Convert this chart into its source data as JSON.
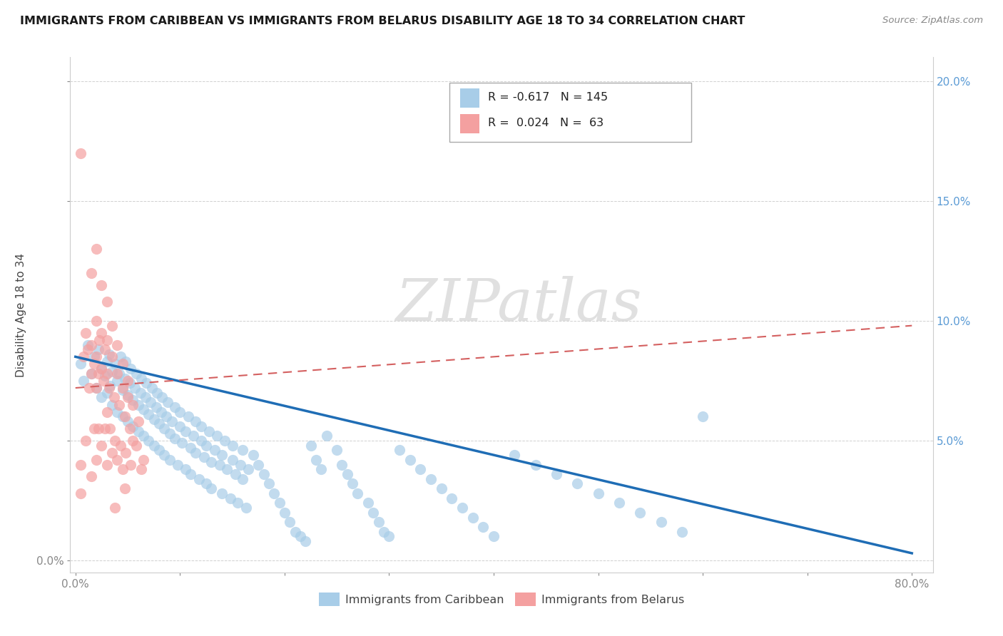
{
  "title": "IMMIGRANTS FROM CARIBBEAN VS IMMIGRANTS FROM BELARUS DISABILITY AGE 18 TO 34 CORRELATION CHART",
  "source_text": "Source: ZipAtlas.com",
  "ylabel": "Disability Age 18 to 34",
  "xlim": [
    -0.005,
    0.82
  ],
  "ylim": [
    -0.005,
    0.21
  ],
  "xticks": [
    0.0,
    0.1,
    0.2,
    0.3,
    0.4,
    0.5,
    0.6,
    0.7,
    0.8
  ],
  "xticklabels": [
    "0.0%",
    "",
    "",
    "",
    "",
    "",
    "",
    "",
    "80.0%"
  ],
  "yticks_left": [
    0.0,
    0.05,
    0.1,
    0.15,
    0.2
  ],
  "yticklabels_left": [
    "0.0%",
    "",
    "",
    "",
    ""
  ],
  "yticks_right": [
    0.05,
    0.1,
    0.15,
    0.2
  ],
  "yticklabels_right": [
    "5.0%",
    "10.0%",
    "15.0%",
    "20.0%"
  ],
  "caribbean_color": "#a8cde8",
  "belarus_color": "#f4a0a0",
  "trend_caribbean_color": "#1f6db5",
  "trend_belarus_color": "#d46060",
  "legend_R_caribbean": "-0.617",
  "legend_N_caribbean": "145",
  "legend_R_belarus": "0.024",
  "legend_N_belarus": "63",
  "legend_label_caribbean": "Immigrants from Caribbean",
  "legend_label_belarus": "Immigrants from Belarus",
  "watermark": "ZIPatlas",
  "background_color": "#ffffff",
  "right_axis_color": "#5b9bd5",
  "grid_color": "#d0d0d0",
  "tick_color": "#888888",
  "title_color": "#1a1a1a",
  "source_color": "#888888",
  "caribbean_x": [
    0.005,
    0.008,
    0.012,
    0.015,
    0.018,
    0.02,
    0.022,
    0.025,
    0.025,
    0.028,
    0.03,
    0.03,
    0.032,
    0.033,
    0.035,
    0.035,
    0.038,
    0.04,
    0.04,
    0.042,
    0.043,
    0.045,
    0.045,
    0.047,
    0.048,
    0.05,
    0.05,
    0.052,
    0.053,
    0.055,
    0.055,
    0.057,
    0.058,
    0.06,
    0.06,
    0.062,
    0.063,
    0.065,
    0.065,
    0.067,
    0.068,
    0.07,
    0.07,
    0.072,
    0.073,
    0.075,
    0.075,
    0.077,
    0.078,
    0.08,
    0.08,
    0.082,
    0.083,
    0.085,
    0.085,
    0.087,
    0.088,
    0.09,
    0.09,
    0.092,
    0.095,
    0.095,
    0.098,
    0.1,
    0.1,
    0.102,
    0.105,
    0.105,
    0.108,
    0.11,
    0.11,
    0.113,
    0.115,
    0.115,
    0.118,
    0.12,
    0.12,
    0.123,
    0.125,
    0.125,
    0.128,
    0.13,
    0.13,
    0.133,
    0.135,
    0.138,
    0.14,
    0.14,
    0.143,
    0.145,
    0.148,
    0.15,
    0.15,
    0.153,
    0.155,
    0.158,
    0.16,
    0.16,
    0.163,
    0.165,
    0.17,
    0.175,
    0.18,
    0.185,
    0.19,
    0.195,
    0.2,
    0.205,
    0.21,
    0.215,
    0.22,
    0.225,
    0.23,
    0.235,
    0.24,
    0.25,
    0.255,
    0.26,
    0.265,
    0.27,
    0.28,
    0.285,
    0.29,
    0.295,
    0.3,
    0.31,
    0.32,
    0.33,
    0.34,
    0.35,
    0.36,
    0.37,
    0.38,
    0.39,
    0.4,
    0.42,
    0.44,
    0.46,
    0.48,
    0.5,
    0.52,
    0.54,
    0.56,
    0.58,
    0.6
  ],
  "caribbean_y": [
    0.082,
    0.075,
    0.09,
    0.078,
    0.085,
    0.072,
    0.088,
    0.08,
    0.068,
    0.077,
    0.083,
    0.07,
    0.086,
    0.073,
    0.079,
    0.065,
    0.082,
    0.075,
    0.062,
    0.078,
    0.085,
    0.071,
    0.06,
    0.076,
    0.083,
    0.069,
    0.058,
    0.074,
    0.08,
    0.067,
    0.056,
    0.072,
    0.078,
    0.065,
    0.054,
    0.07,
    0.076,
    0.063,
    0.052,
    0.068,
    0.074,
    0.061,
    0.05,
    0.066,
    0.072,
    0.059,
    0.048,
    0.064,
    0.07,
    0.057,
    0.046,
    0.062,
    0.068,
    0.055,
    0.044,
    0.06,
    0.066,
    0.053,
    0.042,
    0.058,
    0.064,
    0.051,
    0.04,
    0.056,
    0.062,
    0.049,
    0.038,
    0.054,
    0.06,
    0.047,
    0.036,
    0.052,
    0.058,
    0.045,
    0.034,
    0.05,
    0.056,
    0.043,
    0.032,
    0.048,
    0.054,
    0.041,
    0.03,
    0.046,
    0.052,
    0.04,
    0.028,
    0.044,
    0.05,
    0.038,
    0.026,
    0.042,
    0.048,
    0.036,
    0.024,
    0.04,
    0.046,
    0.034,
    0.022,
    0.038,
    0.044,
    0.04,
    0.036,
    0.032,
    0.028,
    0.024,
    0.02,
    0.016,
    0.012,
    0.01,
    0.008,
    0.048,
    0.042,
    0.038,
    0.052,
    0.046,
    0.04,
    0.036,
    0.032,
    0.028,
    0.024,
    0.02,
    0.016,
    0.012,
    0.01,
    0.046,
    0.042,
    0.038,
    0.034,
    0.03,
    0.026,
    0.022,
    0.018,
    0.014,
    0.01,
    0.044,
    0.04,
    0.036,
    0.032,
    0.028,
    0.024,
    0.02,
    0.016,
    0.012,
    0.06
  ],
  "belarus_x": [
    0.005,
    0.005,
    0.008,
    0.01,
    0.01,
    0.012,
    0.013,
    0.015,
    0.015,
    0.015,
    0.015,
    0.018,
    0.018,
    0.02,
    0.02,
    0.02,
    0.02,
    0.02,
    0.022,
    0.022,
    0.023,
    0.025,
    0.025,
    0.025,
    0.025,
    0.027,
    0.028,
    0.028,
    0.03,
    0.03,
    0.03,
    0.03,
    0.03,
    0.032,
    0.033,
    0.035,
    0.035,
    0.035,
    0.037,
    0.038,
    0.04,
    0.04,
    0.04,
    0.042,
    0.043,
    0.045,
    0.045,
    0.045,
    0.047,
    0.048,
    0.05,
    0.05,
    0.052,
    0.053,
    0.055,
    0.055,
    0.058,
    0.06,
    0.063,
    0.065,
    0.047,
    0.005,
    0.038
  ],
  "belarus_y": [
    0.17,
    0.04,
    0.085,
    0.095,
    0.05,
    0.088,
    0.072,
    0.12,
    0.09,
    0.078,
    0.035,
    0.082,
    0.055,
    0.13,
    0.1,
    0.085,
    0.072,
    0.042,
    0.078,
    0.055,
    0.092,
    0.115,
    0.095,
    0.08,
    0.048,
    0.075,
    0.088,
    0.055,
    0.108,
    0.092,
    0.078,
    0.062,
    0.04,
    0.072,
    0.055,
    0.098,
    0.085,
    0.045,
    0.068,
    0.05,
    0.09,
    0.078,
    0.042,
    0.065,
    0.048,
    0.082,
    0.072,
    0.038,
    0.06,
    0.045,
    0.075,
    0.068,
    0.055,
    0.04,
    0.065,
    0.05,
    0.048,
    0.058,
    0.038,
    0.042,
    0.03,
    0.028,
    0.022
  ],
  "trend_caribbean_start_x": 0.0,
  "trend_caribbean_start_y": 0.085,
  "trend_caribbean_end_x": 0.8,
  "trend_caribbean_end_y": 0.003,
  "trend_belarus_start_x": 0.0,
  "trend_belarus_start_y": 0.072,
  "trend_belarus_end_x": 0.8,
  "trend_belarus_end_y": 0.098
}
